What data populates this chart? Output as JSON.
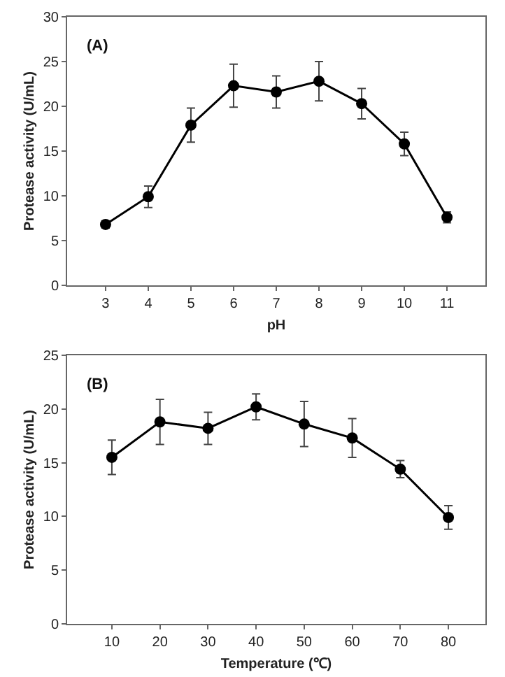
{
  "chart_data": [
    {
      "type": "line",
      "xlabel": "pH",
      "ylabel": "Protease activity (U/mL)",
      "annotations": [
        "(A)"
      ],
      "x": [
        3,
        4,
        5,
        6,
        7,
        8,
        9,
        10,
        11
      ],
      "series": [
        {
          "color": "#000000",
          "values": [
            6.8,
            9.9,
            17.9,
            22.3,
            21.6,
            22.8,
            20.3,
            15.8,
            7.6
          ],
          "errors": [
            0.4,
            1.2,
            1.9,
            2.4,
            1.8,
            2.2,
            1.7,
            1.3,
            0.6
          ]
        }
      ],
      "xlim": [
        2.1,
        11.9
      ],
      "xticks": [
        3,
        4,
        5,
        6,
        7,
        8,
        9,
        10,
        11
      ],
      "ylim": [
        0,
        30
      ],
      "yticks": [
        0,
        5,
        10,
        15,
        20,
        25,
        30
      ],
      "marker": "circle",
      "line_style": "solid"
    },
    {
      "type": "line",
      "xlabel": "Temperature (℃)",
      "ylabel": "Protease activity (U/mL)",
      "annotations": [
        "(B)"
      ],
      "x": [
        10,
        20,
        30,
        40,
        50,
        60,
        70,
        80
      ],
      "series": [
        {
          "color": "#000000",
          "values": [
            15.5,
            18.8,
            18.2,
            20.2,
            18.6,
            17.3,
            14.4,
            9.9
          ],
          "errors": [
            1.6,
            2.1,
            1.5,
            1.2,
            2.1,
            1.8,
            0.8,
            1.1
          ]
        }
      ],
      "xlim": [
        0.7,
        87.7
      ],
      "xticks": [
        10,
        20,
        30,
        40,
        50,
        60,
        70,
        80
      ],
      "ylim": [
        0,
        25
      ],
      "yticks": [
        0,
        5,
        10,
        15,
        20,
        25
      ],
      "marker": "circle",
      "line_style": "solid"
    }
  ]
}
